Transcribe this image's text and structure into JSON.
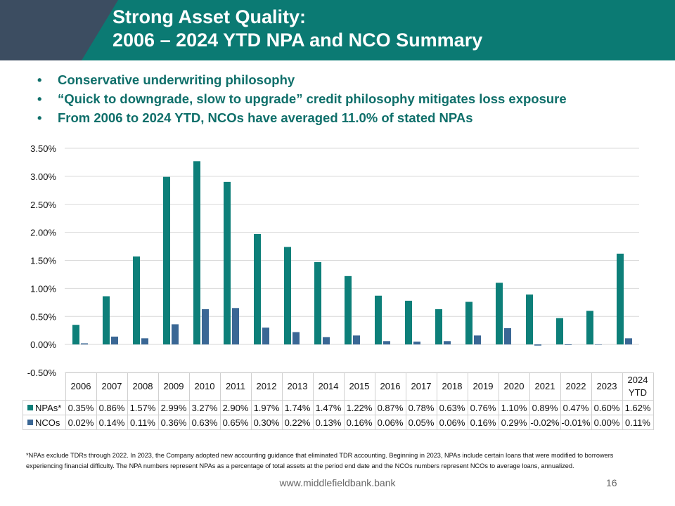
{
  "slide": {
    "title_line1": "Strong Asset Quality:",
    "title_line2": "2006 – 2024 YTD NPA and NCO Summary",
    "bullets": [
      "Conservative underwriting philosophy",
      "“Quick to downgrade, slow to upgrade” credit philosophy mitigates loss exposure",
      "From 2006 to 2024 YTD, NCOs have averaged 11.0% of stated NPAs"
    ],
    "footnote": "*NPAs exclude TDRs through 2022.  In 2023, the Company adopted new accounting guidance that eliminated TDR accounting. Beginning in 2023, NPAs include certain loans that were modified to borrowers experiencing financial difficulty. The NPA numbers represent NPAs as a percentage of total assets at the period end date and the NCOs numbers represent NCOs to average loans, annualized.",
    "footer_url": "www.middlefieldbank.bank",
    "page_number": "16"
  },
  "colors": {
    "header_teal": "#0b7a73",
    "header_slate": "#3c4d61",
    "npa": "#0d7f79",
    "nco": "#3a6795",
    "bullet_text": "#0f6f6a",
    "grid": "#d9d9d9"
  },
  "chart_data": {
    "type": "bar",
    "title": "",
    "categories": [
      "2006",
      "2007",
      "2008",
      "2009",
      "2010",
      "2011",
      "2012",
      "2013",
      "2014",
      "2015",
      "2016",
      "2017",
      "2018",
      "2019",
      "2020",
      "2021",
      "2022",
      "2023",
      "2024 YTD"
    ],
    "series": [
      {
        "name": "NPAs*",
        "values": [
          0.35,
          0.86,
          1.57,
          2.99,
          3.27,
          2.9,
          1.97,
          1.74,
          1.47,
          1.22,
          0.87,
          0.78,
          0.63,
          0.76,
          1.1,
          0.89,
          0.47,
          0.6,
          1.62
        ],
        "labels": [
          "0.35%",
          "0.86%",
          "1.57%",
          "2.99%",
          "3.27%",
          "2.90%",
          "1.97%",
          "1.74%",
          "1.47%",
          "1.22%",
          "0.87%",
          "0.78%",
          "0.63%",
          "0.76%",
          "1.10%",
          "0.89%",
          "0.47%",
          "0.60%",
          "1.62%"
        ]
      },
      {
        "name": "NCOs",
        "values": [
          0.02,
          0.14,
          0.11,
          0.36,
          0.63,
          0.65,
          0.3,
          0.22,
          0.13,
          0.16,
          0.06,
          0.05,
          0.06,
          0.16,
          0.29,
          -0.02,
          -0.01,
          0.0,
          0.11
        ],
        "labels": [
          "0.02%",
          "0.14%",
          "0.11%",
          "0.36%",
          "0.63%",
          "0.65%",
          "0.30%",
          "0.22%",
          "0.13%",
          "0.16%",
          "0.06%",
          "0.05%",
          "0.06%",
          "0.16%",
          "0.29%",
          "-0.02%",
          "-0.01%",
          "0.00%",
          "0.11%"
        ]
      }
    ],
    "yticks": [
      -0.5,
      0.0,
      0.5,
      1.0,
      1.5,
      2.0,
      2.5,
      3.0,
      3.5
    ],
    "ytick_labels": [
      "-0.50%",
      "0.00%",
      "0.50%",
      "1.00%",
      "1.50%",
      "2.00%",
      "2.50%",
      "3.00%",
      "3.50%"
    ],
    "ylim": [
      -0.5,
      3.5
    ],
    "xlabel": "",
    "ylabel": "",
    "grid": true,
    "legend": "data table below chart"
  }
}
